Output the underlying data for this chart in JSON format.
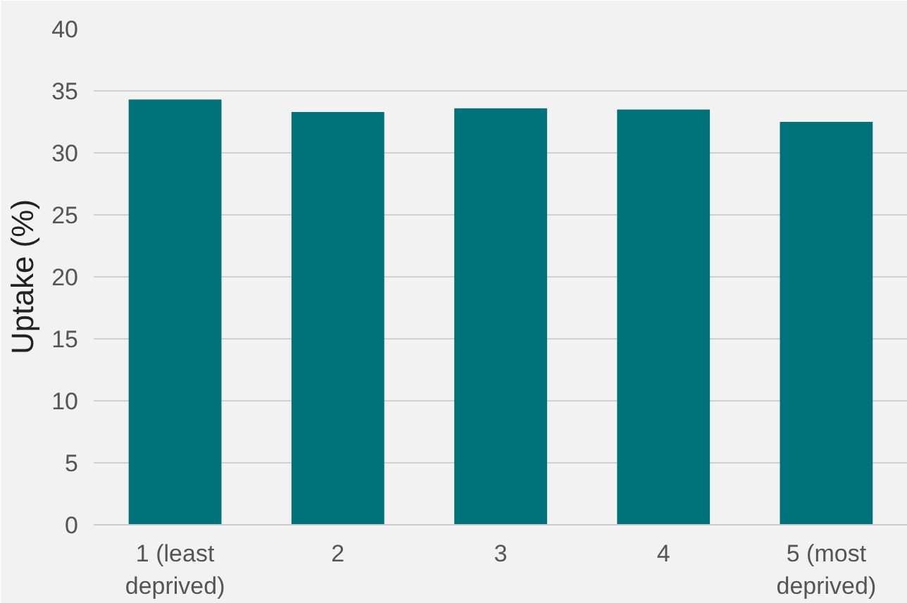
{
  "chart_data": {
    "type": "bar",
    "ylabel": "Uptake (%)",
    "categories": [
      "1 (least deprived)",
      "2",
      "3",
      "4",
      "5 (most deprived)"
    ],
    "values": [
      34.3,
      33.3,
      33.6,
      33.5,
      32.5
    ],
    "color": "#00727a",
    "ylim": [
      0,
      40
    ],
    "yticks": [
      0,
      5,
      10,
      15,
      20,
      25,
      30,
      35,
      40
    ],
    "grid": "y"
  }
}
